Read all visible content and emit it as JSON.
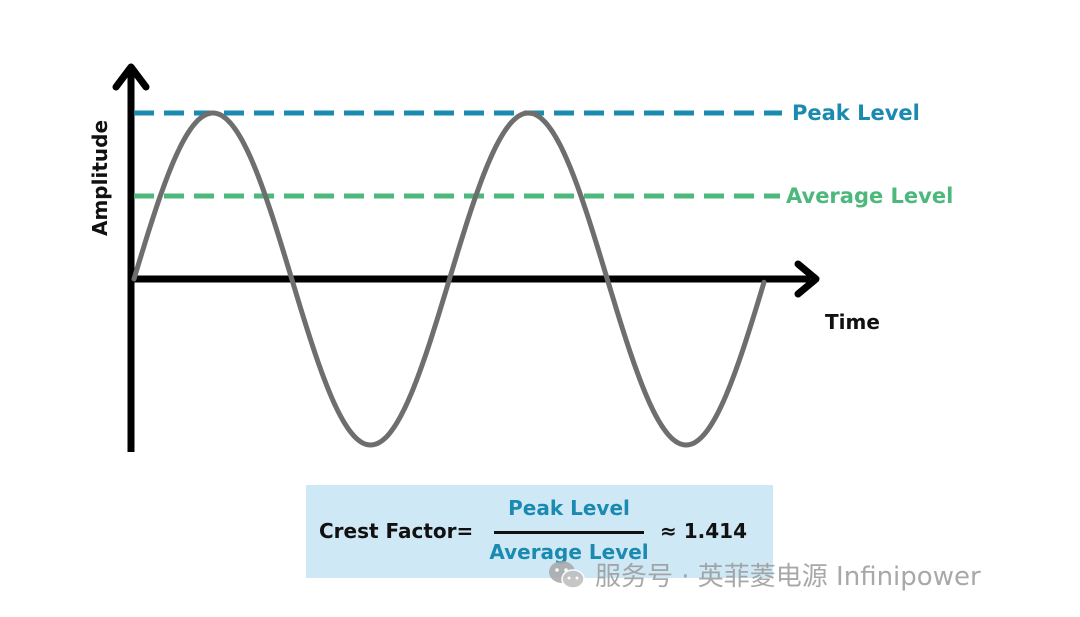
{
  "diagram": {
    "y_axis_label": "Amplitude",
    "x_axis_label": "Time",
    "peak_label": "Peak Level",
    "average_label": "Average Level"
  },
  "formula": {
    "lhs": "Crest Factor=",
    "numerator": "Peak Level",
    "denominator": "Average Level",
    "rhs": "≈ 1.414"
  },
  "watermark": {
    "text": "服务号 · 英菲菱电源 Infinipower"
  },
  "colors": {
    "peak": "#1a8ab0",
    "average": "#4cb87c",
    "wave": "#6e6e6e",
    "axis": "#000000",
    "formula_bg": "#cfe8f5",
    "fraction_text": "#1a8ab0"
  }
}
